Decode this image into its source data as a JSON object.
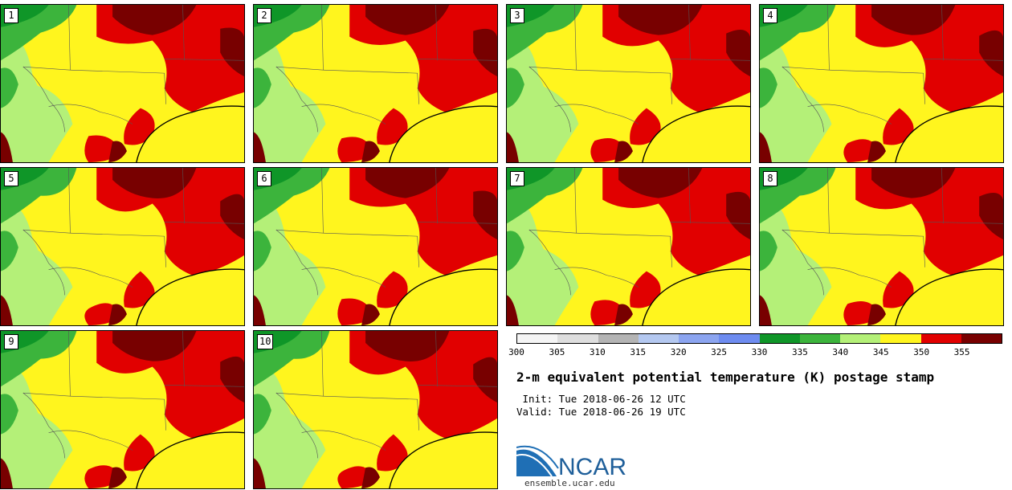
{
  "title": "2-m equivalent potential temperature (K) postage stamp",
  "init": " Init: Tue 2018-06-26 12 UTC",
  "valid": "Valid: Tue 2018-06-26 19 UTC",
  "logo_text": "NCAR",
  "website": "ensemble.ucar.edu",
  "members": [
    "1",
    "2",
    "3",
    "4",
    "5",
    "6",
    "7",
    "8",
    "9",
    "10"
  ],
  "colorbar": {
    "ticks": [
      "300",
      "305",
      "310",
      "315",
      "320",
      "325",
      "330",
      "335",
      "340",
      "345",
      "350",
      "355"
    ],
    "colors": [
      "#f5f5f5",
      "#dedede",
      "#b4b4b4",
      "#b4c8f0",
      "#8ca5f0",
      "#6e8cf0",
      "#0f9628",
      "#3cb43c",
      "#b4f078",
      "#fff51e",
      "#e10000",
      "#780000"
    ]
  },
  "map_colors": {
    "dark_red": "#780000",
    "red": "#e10000",
    "yellow": "#fff51e",
    "light_green": "#b4f078",
    "mid_green": "#3cb43c",
    "dark_green": "#0f9628"
  }
}
